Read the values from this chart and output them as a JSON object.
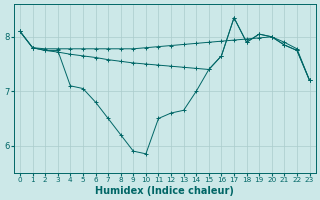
{
  "xlabel": "Humidex (Indice chaleur)",
  "bg_color": "#cce8e8",
  "grid_color": "#aacccc",
  "line_color": "#006666",
  "xlim": [
    -0.5,
    23.5
  ],
  "ylim": [
    5.5,
    8.6
  ],
  "yticks": [
    6,
    7,
    8
  ],
  "xticks": [
    0,
    1,
    2,
    3,
    4,
    5,
    6,
    7,
    8,
    9,
    10,
    11,
    12,
    13,
    14,
    15,
    16,
    17,
    18,
    19,
    20,
    21,
    22,
    23
  ],
  "line1_x": [
    0,
    1,
    2,
    3,
    4,
    5,
    6,
    7,
    8,
    9,
    10,
    11,
    12,
    13,
    14,
    15,
    16,
    17,
    18,
    19,
    20,
    21,
    22,
    23
  ],
  "line1_y": [
    8.1,
    7.8,
    7.78,
    7.78,
    7.78,
    7.78,
    7.78,
    7.78,
    7.78,
    7.78,
    7.8,
    7.82,
    7.84,
    7.86,
    7.88,
    7.9,
    7.92,
    7.94,
    7.96,
    7.98,
    8.0,
    7.9,
    7.78,
    7.2
  ],
  "line2_x": [
    0,
    1,
    2,
    3,
    4,
    5,
    6,
    7,
    8,
    9,
    10,
    11,
    12,
    13,
    14,
    15,
    16,
    17,
    18,
    19,
    20,
    21,
    22,
    23
  ],
  "line2_y": [
    8.1,
    7.8,
    7.75,
    7.75,
    7.1,
    7.05,
    6.8,
    6.5,
    6.2,
    5.9,
    5.85,
    6.5,
    6.6,
    6.65,
    7.0,
    7.4,
    7.65,
    8.35,
    7.9,
    8.05,
    8.0,
    7.85,
    7.75,
    7.2
  ],
  "line3_x": [
    0,
    1,
    2,
    3,
    4,
    5,
    6,
    7,
    8,
    9,
    10,
    11,
    12,
    13,
    14,
    15,
    16,
    17,
    18,
    19,
    20,
    21,
    22,
    23
  ],
  "line3_y": [
    8.1,
    7.8,
    7.75,
    7.72,
    7.68,
    7.65,
    7.62,
    7.58,
    7.55,
    7.52,
    7.5,
    7.48,
    7.46,
    7.44,
    7.42,
    7.4,
    7.65,
    8.35,
    7.9,
    8.05,
    8.0,
    7.85,
    7.75,
    7.2
  ],
  "xlabel_fontsize": 7,
  "tick_fontsize": 6
}
